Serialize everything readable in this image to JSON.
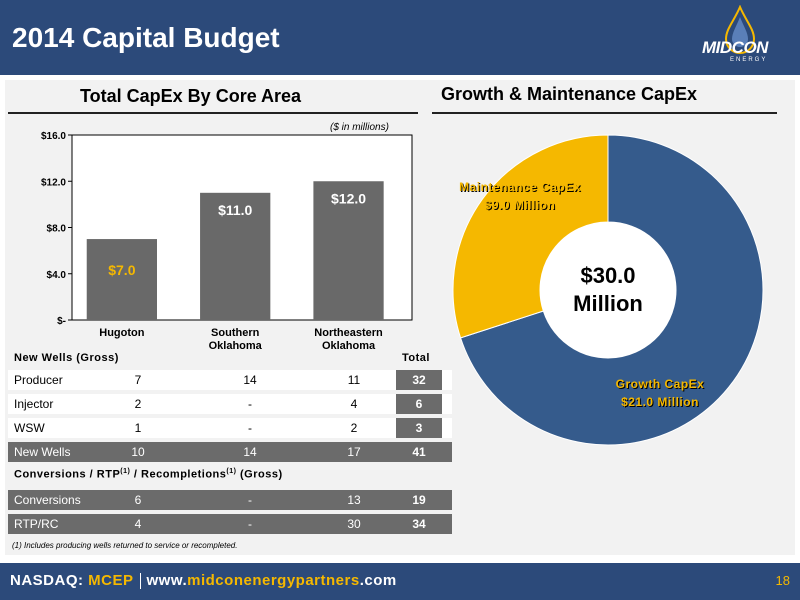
{
  "header": {
    "title": "2014 Capital Budget"
  },
  "logo": {
    "name": "MIDCON",
    "sub": "ENERGY"
  },
  "left_title": "Total CapEx By Core Area",
  "right_title": "Growth & Maintenance CapEx",
  "unit_note": "($ in millions)",
  "colors": {
    "navy": "#2c4a7a",
    "bar": "#696969",
    "gold": "#f5b800",
    "donut_blue": "#355b8c"
  },
  "chart_data": [
    {
      "type": "bar",
      "title": "Total CapEx By Core Area",
      "categories": [
        "Hugoton",
        "Southern Oklahoma",
        "Northeastern Oklahoma"
      ],
      "values": [
        7.0,
        11.0,
        12.0
      ],
      "data_labels": [
        "$7.0",
        "$11.0",
        "$12.0"
      ],
      "yticks": [
        "$-",
        "$4.0",
        "$8.0",
        "$12.0",
        "$16.0"
      ],
      "ylim": [
        0,
        16
      ],
      "grid": false
    },
    {
      "type": "pie",
      "title": "Growth & Maintenance CapEx",
      "labels": [
        "Growth CapEx",
        "Maintenance CapEx"
      ],
      "values": [
        21.0,
        9.0
      ],
      "value_labels": [
        "$21.0 Million",
        "$9.0 Million"
      ],
      "center_label": [
        "$30.0",
        "Million"
      ],
      "donut": true
    }
  ],
  "wells": {
    "heading": "New Wells (Gross)",
    "total_heading": "Total",
    "rows": [
      {
        "label": "Producer",
        "vals": [
          "7",
          "14",
          "11"
        ],
        "total": "32",
        "style": "light"
      },
      {
        "label": "Injector",
        "vals": [
          "2",
          "-",
          "4"
        ],
        "total": "6",
        "style": "light"
      },
      {
        "label": "WSW",
        "vals": [
          "1",
          "-",
          "2"
        ],
        "total": "3",
        "style": "light"
      },
      {
        "label": "New Wells",
        "vals": [
          "10",
          "14",
          "17"
        ],
        "total": "41",
        "style": "dark"
      }
    ]
  },
  "conversions": {
    "heading_a": "Conversions / RTP",
    "sup1": "(1)",
    "heading_b": " / Recompletions",
    "sup2": "(1)",
    "heading_c": " (Gross)",
    "rows": [
      {
        "label": "Conversions",
        "vals": [
          "6",
          "-",
          "13"
        ],
        "total": "19",
        "style": "dark"
      },
      {
        "label": "RTP/RC",
        "vals": [
          "4",
          "-",
          "30"
        ],
        "total": "34",
        "style": "dark"
      }
    ]
  },
  "footnote": "(1)    Includes producing wells returned to service or recompleted.",
  "footer": {
    "nasdaq": "NASDAQ: ",
    "ticker": "MCEP",
    "www": "www.",
    "domain_mid": "midconenergypartners",
    "dotcom": ".com",
    "page": "18"
  }
}
